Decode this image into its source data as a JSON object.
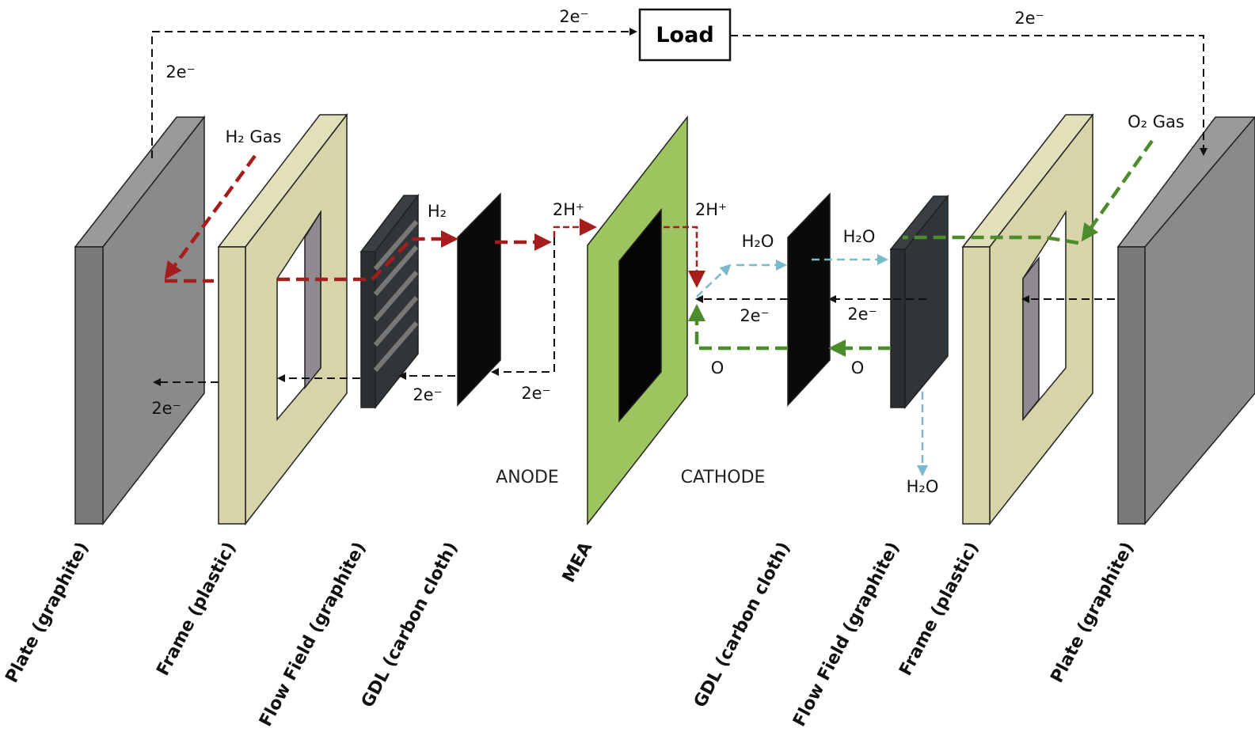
{
  "load": "Load",
  "annotations": [
    "2e⁻",
    "2e⁻",
    "2e⁻",
    "H₂ Gas",
    "H₂",
    "2H⁺",
    "2H⁺",
    "H₂O",
    "H₂O",
    "H₂O",
    "2e⁻",
    "2e⁻",
    "2e⁻",
    "2e⁻",
    "2e⁻",
    "O",
    "O",
    "O₂ Gas"
  ],
  "sides": [
    "ANODE",
    "CATHODE"
  ],
  "components": [
    "Plate (graphite)",
    "Frame (plastic)",
    "Flow Field (graphite)",
    "GDL (carbon cloth)",
    "MEA",
    "GDL (carbon cloth)",
    "Flow Field (graphite)",
    "Frame (plastic)",
    "Plate (graphite)"
  ]
}
